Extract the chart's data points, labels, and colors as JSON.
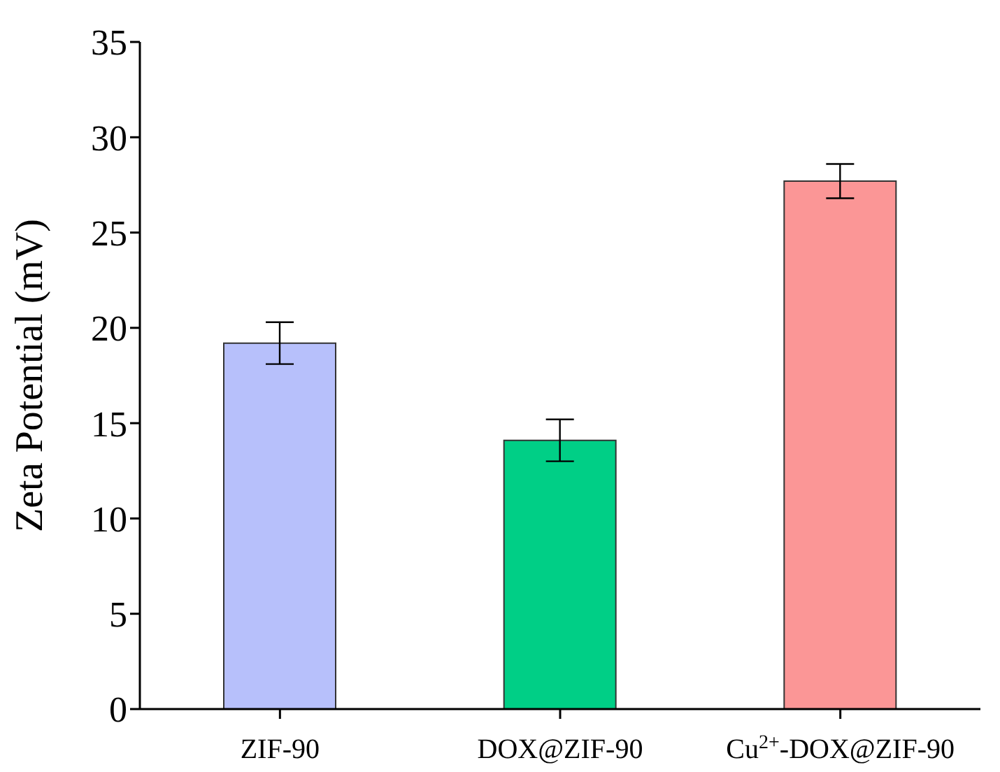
{
  "chart_data": {
    "type": "bar",
    "ylabel": "Zeta Potential (mV)",
    "categories": [
      "ZIF-90",
      "DOX@ZIF-90",
      "Cu$^{2+}$-DOX@ZIF-90"
    ],
    "values": [
      19.2,
      14.1,
      27.7
    ],
    "errors": [
      1.1,
      1.1,
      0.9
    ],
    "colors": [
      "#b7c0fb",
      "#00cf86",
      "#fb9696"
    ],
    "ylim": [
      0,
      35
    ],
    "yticks": [
      0,
      5,
      10,
      15,
      20,
      25,
      30,
      35
    ],
    "grid": false,
    "legend": false
  }
}
